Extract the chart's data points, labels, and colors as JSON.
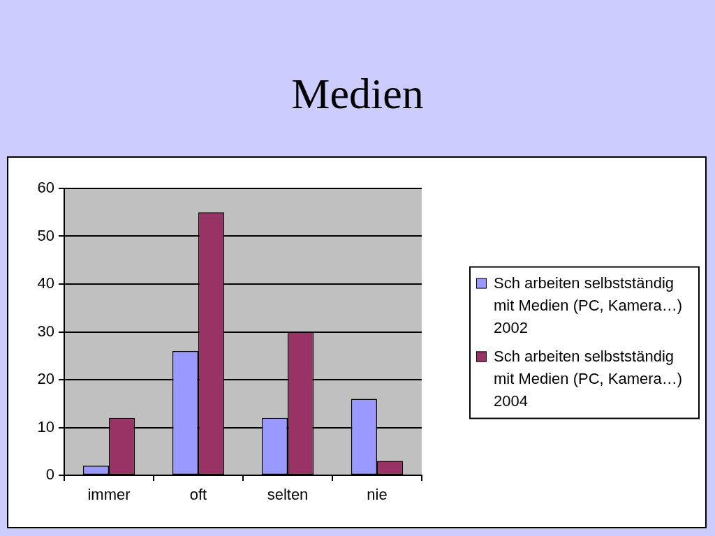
{
  "chart_data": {
    "type": "bar",
    "title": "Medien",
    "categories": [
      "immer",
      "oft",
      "selten",
      "nie"
    ],
    "series": [
      {
        "name": "Sch arbeiten selbstständig mit Medien (PC, Kamera…) 2002",
        "color": "#9999ff",
        "values": [
          2,
          26,
          12,
          16
        ]
      },
      {
        "name": "Sch arbeiten selbstständig mit Medien (PC, Kamera…) 2004",
        "color": "#993366",
        "values": [
          12,
          55,
          30,
          3
        ]
      }
    ],
    "ylim": [
      0,
      60
    ],
    "yticks": [
      0,
      10,
      20,
      30,
      40,
      50,
      60
    ],
    "grid": "y",
    "legend": "right"
  }
}
